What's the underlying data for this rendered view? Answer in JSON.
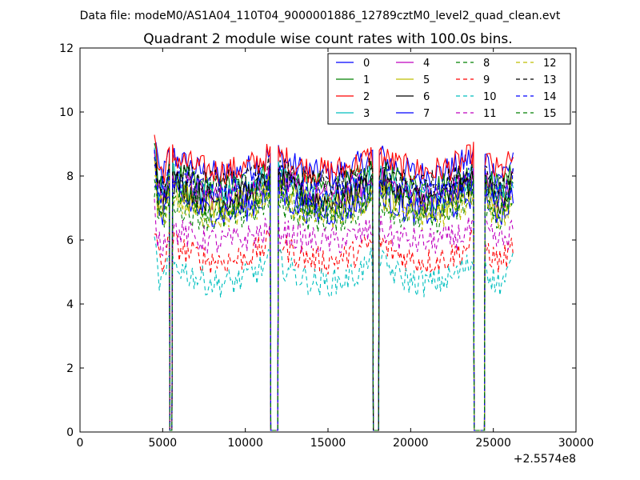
{
  "figure": {
    "suptitle": "Data file: modeM0/AS1A04_110T04_9000001886_12789cztM0_level2_quad_clean.evt"
  },
  "chart_data": {
    "type": "line",
    "title": "Quadrant 2 module wise count rates with 100.0s bins.",
    "xlabel": "",
    "ylabel": "",
    "xlim": [
      0,
      30000
    ],
    "ylim": [
      0,
      12
    ],
    "xticks": [
      0,
      5000,
      10000,
      15000,
      20000,
      25000,
      30000
    ],
    "yticks": [
      0,
      2,
      4,
      6,
      8,
      10,
      12
    ],
    "x_offset_label": "+2.5574e8",
    "legend_location": "upper right",
    "legend_columns": 4,
    "bin_seconds": 100,
    "segments": [
      [
        4500,
        5400
      ],
      [
        5600,
        11500
      ],
      [
        12000,
        17700
      ],
      [
        18100,
        23800
      ],
      [
        24500,
        26200
      ]
    ],
    "series": [
      {
        "name": "0",
        "color": "#0000ff",
        "dash": "solid",
        "level": 8.4
      },
      {
        "name": "1",
        "color": "#008000",
        "dash": "solid",
        "level": 8.0
      },
      {
        "name": "2",
        "color": "#ff0000",
        "dash": "solid",
        "level": 8.5
      },
      {
        "name": "3",
        "color": "#00bfbf",
        "dash": "solid",
        "level": 7.7
      },
      {
        "name": "4",
        "color": "#bf00bf",
        "dash": "solid",
        "level": 7.7
      },
      {
        "name": "5",
        "color": "#bfbf00",
        "dash": "solid",
        "level": 7.4
      },
      {
        "name": "6",
        "color": "#000000",
        "dash": "solid",
        "level": 7.6
      },
      {
        "name": "7",
        "color": "#0000ff",
        "dash": "solid",
        "level": 7.2
      },
      {
        "name": "8",
        "color": "#008000",
        "dash": "dashed",
        "level": 7.0
      },
      {
        "name": "9",
        "color": "#ff0000",
        "dash": "dashed",
        "level": 5.7
      },
      {
        "name": "10",
        "color": "#00bfbf",
        "dash": "dashed",
        "level": 5.0
      },
      {
        "name": "11",
        "color": "#bf00bf",
        "dash": "dashed",
        "level": 6.3
      },
      {
        "name": "12",
        "color": "#bfbf00",
        "dash": "dashed",
        "level": 7.1
      },
      {
        "name": "13",
        "color": "#000000",
        "dash": "dashed",
        "level": 8.1
      },
      {
        "name": "14",
        "color": "#0000ff",
        "dash": "dashed",
        "level": 7.8
      },
      {
        "name": "15",
        "color": "#008000",
        "dash": "dashed",
        "level": 7.3
      }
    ]
  }
}
